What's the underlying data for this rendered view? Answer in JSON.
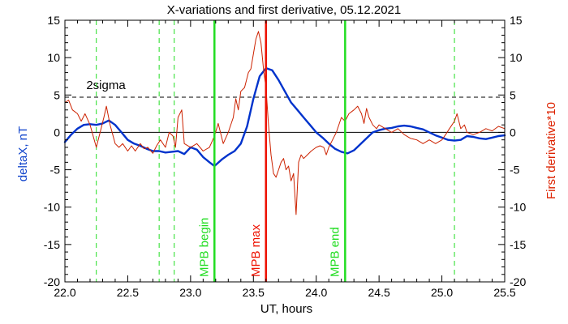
{
  "chart_data": {
    "type": "line",
    "title": "X-variations and first derivative, 05.12.2021",
    "xlabel": "UT, hours",
    "ylabel_left": "deltaX, nT",
    "ylabel_right": "First derivative*10",
    "xlim": [
      22.0,
      25.5
    ],
    "ylim": [
      -20,
      15
    ],
    "x_ticks": [
      "22.0",
      "22.5",
      "23.0",
      "23.5",
      "24.0",
      "24.5",
      "25.0",
      "25.5"
    ],
    "y_ticks": [
      "15",
      "10",
      "5",
      "0",
      "-5",
      "-10",
      "-15",
      "-20"
    ],
    "colors": {
      "deltaX": "#0033cc",
      "derivative": "#cc2200",
      "green": "#22dd22",
      "red": "#ee1100",
      "left_label": "#1144cc",
      "right_label": "#dd2200",
      "zero_line": "#000000",
      "sigma_line": "#000000"
    },
    "sigma": {
      "label": "2sigma",
      "y": 4.7
    },
    "zero_line": 0,
    "dashed_green_x": [
      22.25,
      22.75,
      22.87,
      25.1
    ],
    "markers": [
      {
        "label": "MPB begin",
        "x": 23.19,
        "color": "green"
      },
      {
        "label": "MPB max",
        "x": 23.6,
        "color": "red"
      },
      {
        "label": "MPB end",
        "x": 24.23,
        "color": "green"
      }
    ],
    "series": [
      {
        "key": "deltaX",
        "name": "deltaX, nT",
        "color": "#0033cc",
        "points": [
          [
            22.0,
            -1.3
          ],
          [
            22.05,
            -0.3
          ],
          [
            22.1,
            0.5
          ],
          [
            22.15,
            1.0
          ],
          [
            22.2,
            1.1
          ],
          [
            22.25,
            1.0
          ],
          [
            22.3,
            1.2
          ],
          [
            22.35,
            1.6
          ],
          [
            22.4,
            1.0
          ],
          [
            22.45,
            0.0
          ],
          [
            22.5,
            -1.0
          ],
          [
            22.55,
            -1.5
          ],
          [
            22.6,
            -1.8
          ],
          [
            22.65,
            -2.2
          ],
          [
            22.7,
            -2.5
          ],
          [
            22.75,
            -2.5
          ],
          [
            22.8,
            -2.7
          ],
          [
            22.85,
            -2.6
          ],
          [
            22.9,
            -2.5
          ],
          [
            22.95,
            -2.9
          ],
          [
            23.0,
            -2.0
          ],
          [
            23.05,
            -2.3
          ],
          [
            23.1,
            -3.3
          ],
          [
            23.15,
            -4.0
          ],
          [
            23.19,
            -4.5
          ],
          [
            23.25,
            -3.6
          ],
          [
            23.3,
            -3.0
          ],
          [
            23.35,
            -2.5
          ],
          [
            23.4,
            -1.5
          ],
          [
            23.45,
            0.8
          ],
          [
            23.5,
            4.5
          ],
          [
            23.55,
            7.5
          ],
          [
            23.6,
            8.6
          ],
          [
            23.65,
            8.3
          ],
          [
            23.7,
            7.0
          ],
          [
            23.75,
            5.5
          ],
          [
            23.8,
            4.0
          ],
          [
            23.85,
            3.0
          ],
          [
            23.9,
            2.0
          ],
          [
            23.95,
            1.0
          ],
          [
            24.0,
            0.0
          ],
          [
            24.05,
            -0.7
          ],
          [
            24.1,
            -1.5
          ],
          [
            24.15,
            -2.2
          ],
          [
            24.2,
            -2.6
          ],
          [
            24.25,
            -2.8
          ],
          [
            24.3,
            -2.4
          ],
          [
            24.35,
            -1.6
          ],
          [
            24.4,
            -0.8
          ],
          [
            24.45,
            0.0
          ],
          [
            24.5,
            0.3
          ],
          [
            24.55,
            0.5
          ],
          [
            24.6,
            0.6
          ],
          [
            24.65,
            0.8
          ],
          [
            24.7,
            0.9
          ],
          [
            24.75,
            0.8
          ],
          [
            24.8,
            0.6
          ],
          [
            24.85,
            0.4
          ],
          [
            24.9,
            0.0
          ],
          [
            24.95,
            -0.4
          ],
          [
            25.0,
            -0.7
          ],
          [
            25.05,
            -1.0
          ],
          [
            25.1,
            -1.1
          ],
          [
            25.15,
            -1.0
          ],
          [
            25.2,
            -0.5
          ],
          [
            25.25,
            -0.6
          ],
          [
            25.3,
            -0.8
          ],
          [
            25.35,
            -0.9
          ],
          [
            25.4,
            -0.7
          ],
          [
            25.45,
            -0.5
          ],
          [
            25.5,
            -0.4
          ]
        ]
      },
      {
        "key": "derivative",
        "name": "First derivative*10",
        "color": "#cc2200",
        "points": [
          [
            22.0,
            4.0
          ],
          [
            22.03,
            4.3
          ],
          [
            22.06,
            3.0
          ],
          [
            22.1,
            2.5
          ],
          [
            22.13,
            1.5
          ],
          [
            22.16,
            2.5
          ],
          [
            22.2,
            1.0
          ],
          [
            22.25,
            -2.0
          ],
          [
            22.28,
            0.0
          ],
          [
            22.31,
            2.0
          ],
          [
            22.33,
            3.5
          ],
          [
            22.36,
            1.0
          ],
          [
            22.4,
            -1.5
          ],
          [
            22.43,
            -2.0
          ],
          [
            22.46,
            -1.5
          ],
          [
            22.5,
            -2.5
          ],
          [
            22.53,
            -1.8
          ],
          [
            22.56,
            -2.5
          ],
          [
            22.6,
            -1.5
          ],
          [
            22.63,
            -2.2
          ],
          [
            22.66,
            -2.0
          ],
          [
            22.7,
            -2.8
          ],
          [
            22.73,
            -1.8
          ],
          [
            22.76,
            -1.0
          ],
          [
            22.8,
            -2.0
          ],
          [
            22.83,
            0.0
          ],
          [
            22.86,
            -0.5
          ],
          [
            22.88,
            -2.0
          ],
          [
            22.9,
            2.0
          ],
          [
            22.93,
            3.0
          ],
          [
            22.95,
            -1.5
          ],
          [
            23.0,
            -2.0
          ],
          [
            23.05,
            -1.5
          ],
          [
            23.1,
            -2.5
          ],
          [
            23.15,
            -2.0
          ],
          [
            23.19,
            -0.5
          ],
          [
            23.22,
            1.2
          ],
          [
            23.26,
            -1.5
          ],
          [
            23.3,
            0.0
          ],
          [
            23.34,
            2.0
          ],
          [
            23.36,
            4.5
          ],
          [
            23.38,
            3.0
          ],
          [
            23.4,
            5.5
          ],
          [
            23.43,
            6.0
          ],
          [
            23.46,
            8.0
          ],
          [
            23.48,
            8.5
          ],
          [
            23.5,
            10.5
          ],
          [
            23.52,
            12.5
          ],
          [
            23.54,
            13.5
          ],
          [
            23.56,
            12.0
          ],
          [
            23.58,
            8.5
          ],
          [
            23.6,
            6.0
          ],
          [
            23.62,
            1.0
          ],
          [
            23.64,
            -3.0
          ],
          [
            23.66,
            -5.5
          ],
          [
            23.68,
            -6.0
          ],
          [
            23.7,
            -5.0
          ],
          [
            23.72,
            -4.0
          ],
          [
            23.74,
            -3.5
          ],
          [
            23.76,
            -5.0
          ],
          [
            23.78,
            -4.5
          ],
          [
            23.8,
            -6.5
          ],
          [
            23.82,
            -5.5
          ],
          [
            23.84,
            -11.0
          ],
          [
            23.86,
            -4.0
          ],
          [
            23.88,
            -3.0
          ],
          [
            23.9,
            -3.5
          ],
          [
            23.93,
            -3.0
          ],
          [
            23.96,
            -2.5
          ],
          [
            24.0,
            -2.0
          ],
          [
            24.03,
            -1.8
          ],
          [
            24.06,
            -2.0
          ],
          [
            24.08,
            -3.0
          ],
          [
            24.1,
            -2.0
          ],
          [
            24.13,
            -1.0
          ],
          [
            24.16,
            0.0
          ],
          [
            24.2,
            2.0
          ],
          [
            24.23,
            1.5
          ],
          [
            24.26,
            2.5
          ],
          [
            24.3,
            3.0
          ],
          [
            24.33,
            3.5
          ],
          [
            24.36,
            2.5
          ],
          [
            24.38,
            1.2
          ],
          [
            24.4,
            3.2
          ],
          [
            24.42,
            2.0
          ],
          [
            24.45,
            1.0
          ],
          [
            24.48,
            0.5
          ],
          [
            24.5,
            1.0
          ],
          [
            24.55,
            0.5
          ],
          [
            24.6,
            0.0
          ],
          [
            24.65,
            0.5
          ],
          [
            24.7,
            -0.3
          ],
          [
            24.75,
            -0.8
          ],
          [
            24.8,
            -1.0
          ],
          [
            24.85,
            -1.5
          ],
          [
            24.9,
            -1.0
          ],
          [
            24.95,
            -1.5
          ],
          [
            25.0,
            -1.0
          ],
          [
            25.03,
            -0.3
          ],
          [
            25.06,
            0.5
          ],
          [
            25.08,
            1.0
          ],
          [
            25.1,
            1.5
          ],
          [
            25.12,
            2.5
          ],
          [
            25.15,
            0.5
          ],
          [
            25.18,
            1.0
          ],
          [
            25.2,
            0.0
          ],
          [
            25.25,
            -0.3
          ],
          [
            25.3,
            0.0
          ],
          [
            25.35,
            0.5
          ],
          [
            25.4,
            0.2
          ],
          [
            25.45,
            0.8
          ],
          [
            25.5,
            0.5
          ]
        ]
      }
    ]
  }
}
